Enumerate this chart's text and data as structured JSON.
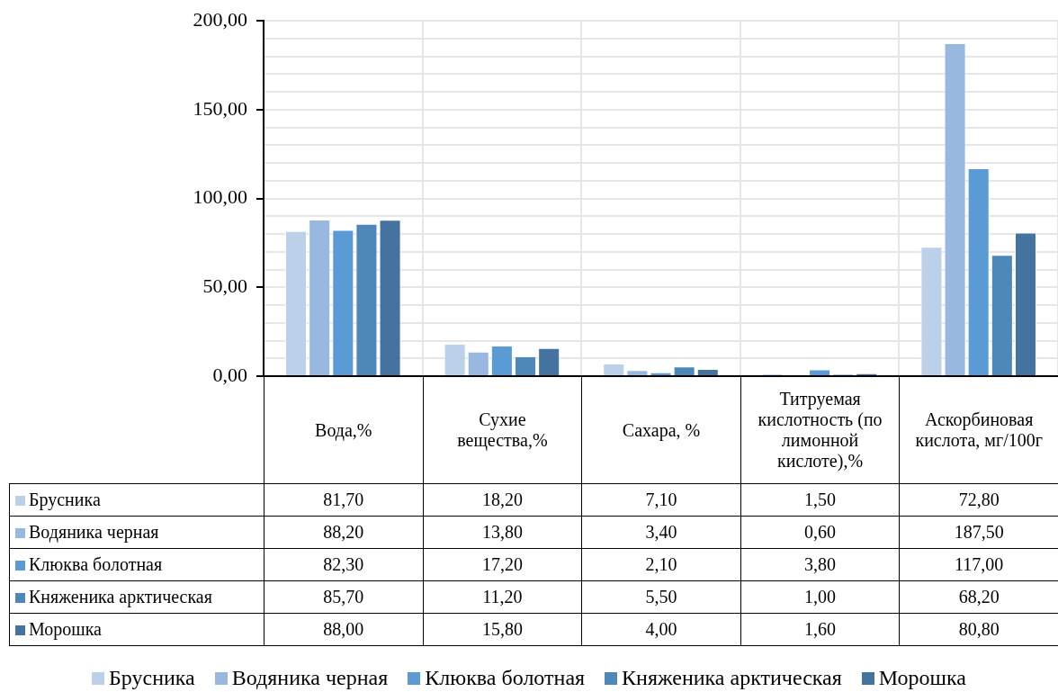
{
  "chart_data": {
    "type": "bar",
    "categories": [
      "Вода,%",
      "Сухие вещества,%",
      "Сахара, %",
      "Титруемая кислотность (по лимонной кислоте),%",
      "Аскорбиновая кислота, мг/100г"
    ],
    "series": [
      {
        "name": "Брусника",
        "color": "#bdd0e9",
        "values": [
          81.7,
          18.2,
          7.1,
          1.5,
          72.8
        ],
        "value_labels": [
          "81,70",
          "18,20",
          "7,10",
          "1,50",
          "72,80"
        ]
      },
      {
        "name": "Водяника черная",
        "color": "#98b8df",
        "values": [
          88.2,
          13.8,
          3.4,
          0.6,
          187.5
        ],
        "value_labels": [
          "88,20",
          "13,80",
          "3,40",
          "0,60",
          "187,50"
        ]
      },
      {
        "name": "Клюква болотная",
        "color": "#5b9bd5",
        "values": [
          82.3,
          17.2,
          2.1,
          3.8,
          117.0
        ],
        "value_labels": [
          "82,30",
          "17,20",
          "2,10",
          "3,80",
          "117,00"
        ]
      },
      {
        "name": "Княженика арктическая",
        "color": "#4e88bb",
        "values": [
          85.7,
          11.2,
          5.5,
          1.0,
          68.2
        ],
        "value_labels": [
          "85,70",
          "11,20",
          "5,50",
          "1,00",
          "68,20"
        ]
      },
      {
        "name": "Морошка",
        "color": "#44739f",
        "values": [
          88.0,
          15.8,
          4.0,
          1.6,
          80.8
        ],
        "value_labels": [
          "88,00",
          "15,80",
          "4,00",
          "1,60",
          "80,80"
        ]
      }
    ],
    "ylim": [
      0,
      200
    ],
    "yticks": [
      {
        "value": 0,
        "label": "0,00"
      },
      {
        "value": 10,
        "label": null
      },
      {
        "value": 20,
        "label": null
      },
      {
        "value": 30,
        "label": null
      },
      {
        "value": 40,
        "label": null
      },
      {
        "value": 50,
        "label": "50,00"
      },
      {
        "value": 60,
        "label": null
      },
      {
        "value": 70,
        "label": null
      },
      {
        "value": 80,
        "label": null
      },
      {
        "value": 90,
        "label": null
      },
      {
        "value": 100,
        "label": "100,00"
      },
      {
        "value": 110,
        "label": null
      },
      {
        "value": 120,
        "label": null
      },
      {
        "value": 130,
        "label": null
      },
      {
        "value": 140,
        "label": null
      },
      {
        "value": 150,
        "label": "150,00"
      },
      {
        "value": 160,
        "label": null
      },
      {
        "value": 170,
        "label": null
      },
      {
        "value": 180,
        "label": null
      },
      {
        "value": 190,
        "label": null
      },
      {
        "value": 200,
        "label": "200,00"
      }
    ],
    "grid": true,
    "legend": "bottom"
  }
}
